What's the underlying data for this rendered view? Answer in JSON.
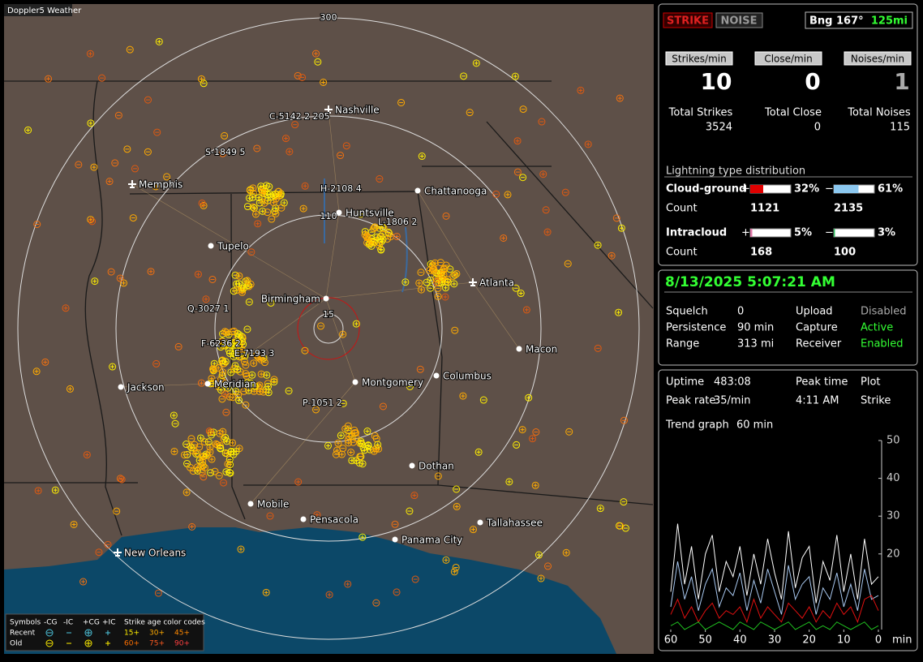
{
  "map": {
    "brand": "Doppler5 Weather",
    "ring_labels": [
      "300",
      "110",
      "15"
    ],
    "cities": [
      "Nashville",
      "Memphis",
      "Chattanooga",
      "Huntsville",
      "Tupelo",
      "Atlanta",
      "Birmingham",
      "Macon",
      "Jackson",
      "Meridian",
      "Montgomery",
      "Columbus",
      "Dothan",
      "Mobile",
      "Pensacola",
      "Tallahassee",
      "Panama City",
      "New Orleans"
    ],
    "storms": [
      "C-5142 2 205",
      "S-1849 5",
      "H-2108 4",
      "L-1806 2",
      "Q-3027 1",
      "F-6236 2",
      "E-7193 3",
      "P-1051 2"
    ],
    "legend": {
      "symbols": "Symbols",
      "types": [
        "-CG",
        "-IC",
        "+CG",
        "+IC"
      ],
      "age_title": "Strike age color codes",
      "recent": "Recent",
      "old": "Old",
      "recent_ages": [
        "15+",
        "30+",
        "45+"
      ],
      "old_ages": [
        "60+",
        "75+",
        "90+"
      ]
    }
  },
  "panel": {
    "strike_button": "STRIKE",
    "noise_button": "NOISE",
    "bearing": "Bng 167°",
    "distance": "125mi",
    "rates": [
      {
        "button": "Strikes/min",
        "value": 10,
        "total_label": "Total Strikes",
        "total": 3524
      },
      {
        "button": "Close/min",
        "value": 0,
        "total_label": "Total Close",
        "total": 0
      },
      {
        "button": "Noises/min",
        "value": 1,
        "total_label": "Total Noises",
        "total": 115
      }
    ],
    "distribution": {
      "title": "Lightning type distribution",
      "plus_sign": "+",
      "minus_sign": "−",
      "count_label": "Count",
      "rows": [
        {
          "label": "Cloud-ground",
          "plus": 32,
          "plus_label": "32%",
          "minus": 61,
          "minus_label": "61%",
          "plus_count": 1121,
          "minus_count": 2135,
          "plus_color": "#e00000",
          "minus_color": "#8cc8f0"
        },
        {
          "label": "Intracloud",
          "plus": 5,
          "plus_label": "5%",
          "minus": 3,
          "minus_label": "3%",
          "plus_count": 168,
          "minus_count": 100,
          "plus_color": "#e078a8",
          "minus_color": "#30c060"
        }
      ]
    },
    "datetime": "8/13/2025 5:07:21 AM",
    "status": [
      [
        "Squelch",
        "0",
        "Upload",
        "Disabled"
      ],
      [
        "Persistence",
        "90 min",
        "Capture",
        "Active"
      ],
      [
        "Range",
        "313 mi",
        "Receiver",
        "Enabled"
      ]
    ],
    "stats": [
      [
        "Uptime",
        "483:08",
        "Peak time",
        "Plot"
      ],
      [
        "Peak rate",
        "35/min",
        "4:11 AM",
        "Strike"
      ]
    ],
    "trend_label": "Trend graph",
    "trend_window": "60 min"
  },
  "chart_data": {
    "type": "line",
    "x": [
      60,
      58,
      56,
      54,
      52,
      50,
      48,
      46,
      44,
      42,
      40,
      38,
      36,
      34,
      32,
      30,
      28,
      26,
      24,
      22,
      20,
      18,
      16,
      14,
      12,
      10,
      8,
      6,
      4,
      2,
      0
    ],
    "xlim": [
      60,
      0
    ],
    "xticks": [
      60,
      50,
      40,
      30,
      20,
      10,
      0
    ],
    "x_unit": "min",
    "ylim": [
      0,
      50
    ],
    "yticks": [
      20,
      30,
      40,
      50
    ],
    "series": [
      {
        "color": "#ffffff",
        "values": [
          10,
          28,
          12,
          22,
          8,
          20,
          25,
          10,
          18,
          14,
          22,
          9,
          20,
          12,
          24,
          15,
          8,
          26,
          11,
          19,
          22,
          7,
          18,
          13,
          25,
          10,
          20,
          8,
          24,
          12,
          14
        ]
      },
      {
        "color": "#a8c8f0",
        "values": [
          6,
          18,
          8,
          14,
          5,
          12,
          16,
          6,
          11,
          9,
          15,
          5,
          13,
          7,
          16,
          10,
          4,
          17,
          8,
          12,
          14,
          4,
          11,
          8,
          15,
          6,
          12,
          5,
          16,
          8,
          9
        ]
      },
      {
        "color": "#e01010",
        "values": [
          4,
          8,
          3,
          6,
          2,
          5,
          7,
          3,
          5,
          4,
          6,
          2,
          8,
          3,
          6,
          4,
          2,
          7,
          5,
          3,
          6,
          2,
          5,
          3,
          7,
          4,
          6,
          2,
          8,
          9,
          5
        ]
      },
      {
        "color": "#20c020",
        "values": [
          1,
          2,
          0,
          1,
          2,
          0,
          1,
          2,
          1,
          0,
          2,
          1,
          0,
          2,
          1,
          0,
          1,
          2,
          0,
          1,
          2,
          0,
          1,
          0,
          2,
          1,
          0,
          1,
          2,
          0,
          1
        ]
      }
    ]
  }
}
